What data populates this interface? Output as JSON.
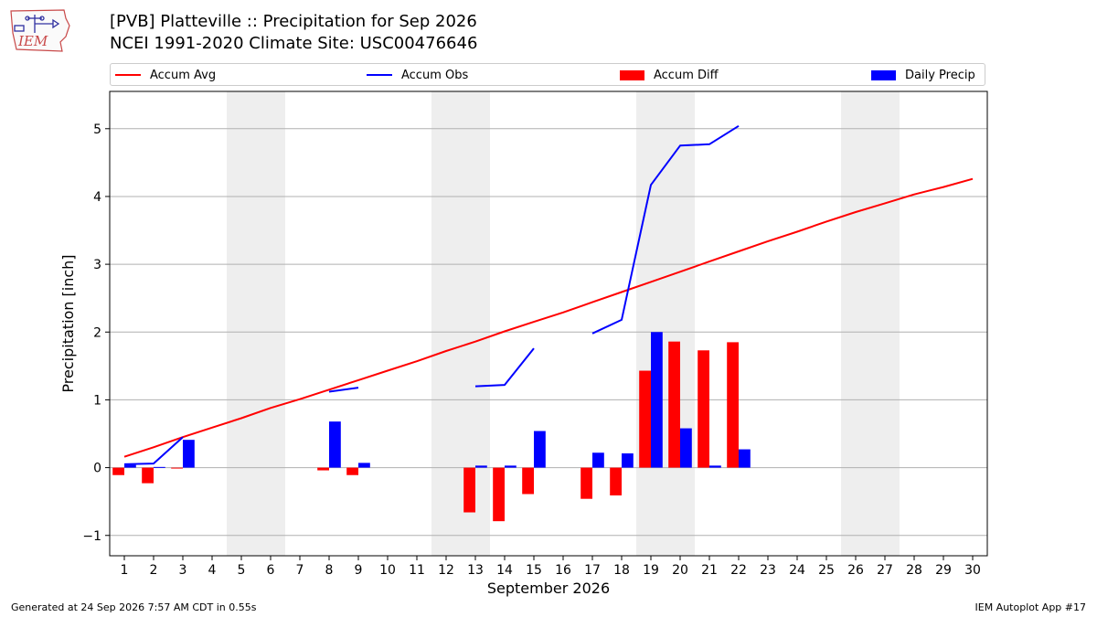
{
  "header": {
    "title_line1": "[PVB] Platteville :: Precipitation for Sep 2026",
    "title_line2": "NCEI 1991-2020 Climate Site: USC00476646",
    "logo_text": "IEM"
  },
  "footer": {
    "left": "Generated at 24 Sep 2026 7:57 AM CDT in 0.55s",
    "right": "IEM Autoplot App #17"
  },
  "legend": {
    "items": [
      {
        "label": "Accum Avg",
        "kind": "line",
        "color": "#ff0000"
      },
      {
        "label": "Accum Obs",
        "kind": "line",
        "color": "#0000ff"
      },
      {
        "label": "Accum Diff",
        "kind": "bar",
        "color": "#ff0000"
      },
      {
        "label": "Daily Precip",
        "kind": "bar",
        "color": "#0000ff"
      }
    ]
  },
  "chart_data": {
    "type": "bar",
    "title": "[PVB] Platteville :: Precipitation for Sep 2026",
    "subtitle": "NCEI 1991-2020 Climate Site: USC00476646",
    "xlabel": "September 2026",
    "ylabel": "Precipitation [inch]",
    "xlim": [
      0.5,
      30.5
    ],
    "ylim": [
      -1.3,
      5.55
    ],
    "yticks": [
      -1,
      0,
      1,
      2,
      3,
      4,
      5
    ],
    "ytick_labels": [
      "−1",
      "0",
      "1",
      "2",
      "3",
      "4",
      "5"
    ],
    "x": [
      1,
      2,
      3,
      4,
      5,
      6,
      7,
      8,
      9,
      10,
      11,
      12,
      13,
      14,
      15,
      16,
      17,
      18,
      19,
      20,
      21,
      22,
      23,
      24,
      25,
      26,
      27,
      28,
      29,
      30
    ],
    "weekend_shading": [
      [
        4.5,
        6.5
      ],
      [
        11.5,
        13.5
      ],
      [
        18.5,
        20.5
      ],
      [
        25.5,
        27.5
      ]
    ],
    "grid": true,
    "series": [
      {
        "name": "Accum Avg",
        "kind": "line",
        "color": "#ff0000",
        "values": [
          0.16,
          0.3,
          0.45,
          0.59,
          0.73,
          0.88,
          1.01,
          1.15,
          1.29,
          1.43,
          1.57,
          1.72,
          1.86,
          2.01,
          2.15,
          2.29,
          2.44,
          2.59,
          2.74,
          2.89,
          3.04,
          3.19,
          3.34,
          3.48,
          3.63,
          3.77,
          3.9,
          4.03,
          4.14,
          4.26
        ]
      },
      {
        "name": "Accum Obs",
        "kind": "line",
        "color": "#0000ff",
        "values": [
          0.05,
          0.06,
          0.45,
          null,
          null,
          null,
          null,
          1.12,
          1.18,
          null,
          null,
          null,
          1.2,
          1.22,
          1.76,
          null,
          1.98,
          2.18,
          4.17,
          4.75,
          4.77,
          5.04,
          null,
          null,
          null,
          null,
          null,
          null,
          null,
          null
        ]
      },
      {
        "name": "Accum Diff",
        "kind": "bar",
        "color": "#ff0000",
        "values": [
          -0.11,
          -0.23,
          -0.01,
          null,
          null,
          null,
          null,
          -0.04,
          -0.11,
          null,
          null,
          null,
          -0.66,
          -0.79,
          -0.39,
          null,
          -0.46,
          -0.41,
          1.43,
          1.86,
          1.73,
          1.85,
          null,
          null,
          null,
          null,
          null,
          null,
          null,
          null
        ]
      },
      {
        "name": "Daily Precip",
        "kind": "bar",
        "color": "#0000ff",
        "values": [
          0.04,
          0.01,
          0.41,
          null,
          null,
          null,
          null,
          0.68,
          0.07,
          null,
          null,
          null,
          0.03,
          0.03,
          0.54,
          null,
          0.22,
          0.21,
          2.0,
          0.58,
          0.03,
          0.27,
          null,
          null,
          null,
          null,
          null,
          null,
          null,
          null
        ]
      }
    ]
  }
}
